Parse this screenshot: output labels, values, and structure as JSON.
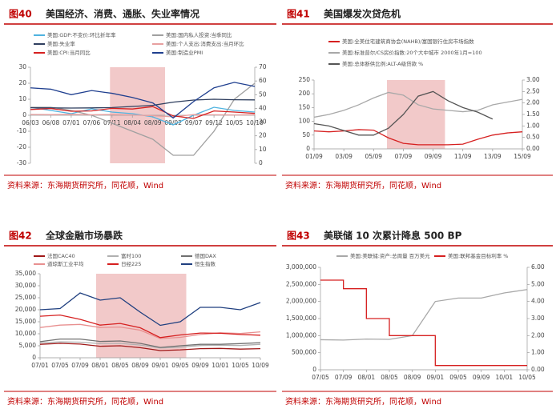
{
  "chart_data": [
    {
      "type": "line",
      "figure": "图40",
      "title": "美国经济、消费、通胀、失业率情况",
      "source": "资料来源：东海期货研究所，同花顺，Wind",
      "categories": [
        "06/03",
        "06/08",
        "07/01",
        "07/06",
        "07/11",
        "08/04",
        "08/09",
        "09/02",
        "09/07",
        "09/12",
        "10/05",
        "10/10"
      ],
      "highlight": [
        3.9,
        6.6
      ],
      "highlight_color": "#f2c9c9",
      "ylim": [
        -30,
        30
      ],
      "yticks": [
        -30,
        -20,
        -10,
        0,
        10,
        20,
        30
      ],
      "y2lim": [
        0,
        70
      ],
      "y2ticks": [
        0,
        10,
        20,
        30,
        40,
        50,
        60,
        70
      ],
      "series": [
        {
          "name": "美国:GDP:不变价:环比折年率",
          "color": "#4fb3e0",
          "values": [
            5,
            3,
            1,
            4,
            2,
            1,
            -1,
            -6,
            0,
            5,
            3,
            2
          ]
        },
        {
          "name": "美国:国内私人投资:当季同比",
          "color": "#a0a0a0",
          "values": [
            5,
            5,
            3,
            0,
            -5,
            -10,
            -15,
            -25,
            -25,
            -10,
            10,
            20
          ]
        },
        {
          "name": "美国:失业率",
          "color": "#2f3f5f",
          "values": [
            4.7,
            4.6,
            4.5,
            4.6,
            4.8,
            5.5,
            6.2,
            8.2,
            9.5,
            10,
            9.7,
            9.6
          ]
        },
        {
          "name": "美国:个人支出:消费支出:当月环比",
          "color": "#e8a0a0",
          "values": [
            0.5,
            0.4,
            0.6,
            0.3,
            0.5,
            0.2,
            -0.3,
            -1,
            0.4,
            0.3,
            0.2,
            0.4
          ]
        },
        {
          "name": "美国:CPI:当月同比",
          "color": "#d62020",
          "values": [
            3.6,
            4.2,
            2.5,
            2.7,
            4.3,
            3.9,
            5.4,
            -0.4,
            -2,
            2.7,
            2,
            1.2
          ]
        },
        {
          "name": "美国:制造业PMI",
          "color": "#1f3f8f",
          "axis": "y2",
          "values": [
            55,
            54,
            50,
            53,
            51,
            48,
            44,
            33,
            45,
            55,
            59,
            56
          ]
        }
      ]
    },
    {
      "type": "line",
      "figure": "图41",
      "title": "美国爆发次贷危机",
      "source": "资料来源：东海期货研究所，同花顺，Wind",
      "categories": [
        "01/09",
        null,
        "03/09",
        null,
        "05/09",
        null,
        "07/09",
        null,
        "09/09",
        null,
        "11/09",
        null,
        "13/09",
        null,
        "15/09"
      ],
      "highlight": [
        4.9,
        8.8
      ],
      "highlight_color": "#f2c9c9",
      "ylim": [
        0,
        250
      ],
      "yticks": [
        0,
        50,
        100,
        150,
        200,
        250
      ],
      "y2lim": [
        0,
        3
      ],
      "y2ticks": [
        {
          "value": 0,
          "label": "0.00"
        },
        {
          "value": 0.5,
          "label": "0.50"
        },
        {
          "value": 1,
          "label": "1.00"
        },
        {
          "value": 1.5,
          "label": "1.50"
        },
        {
          "value": 2,
          "label": "2.00"
        },
        {
          "value": 2.5,
          "label": "2.50"
        },
        {
          "value": 3,
          "label": "3.00"
        }
      ],
      "series": [
        {
          "name": "美国:全美住宅建筑商协会(NAHB)/富国银行住房市场指数",
          "color": "#d62020",
          "values": [
            65,
            62,
            65,
            70,
            68,
            40,
            20,
            15,
            15,
            15,
            17,
            35,
            50,
            58,
            62
          ]
        },
        {
          "name": "美国:标准普尔/CS房价指数:20个大中城市 2000年1月=100",
          "color": "#a8a8a8",
          "values": [
            115,
            125,
            140,
            160,
            185,
            205,
            195,
            160,
            145,
            140,
            135,
            140,
            160,
            170,
            180
          ]
        },
        {
          "name": "美国:总体断供比例:ALT-A级贷款 %",
          "color": "#555555",
          "axis": "y2",
          "values": [
            1.1,
            1.0,
            0.8,
            0.6,
            0.6,
            0.9,
            1.5,
            2.3,
            2.5,
            2.1,
            1.8,
            1.6,
            1.3,
            null,
            null
          ]
        }
      ]
    },
    {
      "type": "line",
      "figure": "图42",
      "title": "全球金融市场暴跌",
      "source": "资料来源：东海期货研究所，同花顺，Wind",
      "categories": [
        "07/01",
        "07/05",
        "07/09",
        "08/01",
        "08/05",
        "08/09",
        "09/01",
        "09/05",
        "09/09",
        "10/01",
        "10/05",
        "10/09"
      ],
      "highlight": [
        2.8,
        7.3
      ],
      "highlight_color": "#f2c9c9",
      "ylim": [
        0,
        35000
      ],
      "yticks": [
        0,
        {
          "value": 5000,
          "label": "5,000"
        },
        {
          "value": 10000,
          "label": "10,000"
        },
        {
          "value": 15000,
          "label": "15,000"
        },
        {
          "value": 20000,
          "label": "20,000"
        },
        {
          "value": 25000,
          "label": "25,000"
        },
        {
          "value": 30000,
          "label": "30,000"
        },
        {
          "value": 35000,
          "label": "35,000"
        }
      ],
      "series": [
        {
          "name": "法国CAC40",
          "color": "#a01818",
          "values": [
            5600,
            6000,
            5700,
            4800,
            5000,
            4200,
            3000,
            3300,
            3800,
            3900,
            3600,
            3800
          ]
        },
        {
          "name": "富时100",
          "color": "#b0b0b0",
          "values": [
            6200,
            6600,
            6500,
            5900,
            6000,
            5300,
            4100,
            4400,
            5100,
            5200,
            5100,
            5600
          ]
        },
        {
          "name": "德国DAX",
          "color": "#707070",
          "values": [
            6700,
            7800,
            7800,
            6800,
            7000,
            6000,
            4300,
            5000,
            5600,
            5600,
            5900,
            6300
          ]
        },
        {
          "name": "道琼斯工业平均",
          "color": "#e89090",
          "values": [
            12600,
            13600,
            13900,
            12600,
            12800,
            11500,
            8000,
            8500,
            9700,
            10400,
            10100,
            10800
          ]
        },
        {
          "name": "日经225",
          "color": "#d62020",
          "values": [
            17300,
            17800,
            16000,
            13600,
            14300,
            12500,
            8400,
            9500,
            10300,
            10200,
            9700,
            9400
          ]
        },
        {
          "name": "恒生指数",
          "color": "#1f3f7f",
          "values": [
            20000,
            20500,
            27000,
            24000,
            25000,
            19000,
            13500,
            15000,
            21000,
            21000,
            20000,
            23000
          ]
        }
      ]
    },
    {
      "type": "line",
      "figure": "图43",
      "title": "美联储 10 次累计降息 500 BP",
      "source": "资料来源：东海期货研究所，同花顺，Wind",
      "categories": [
        "07/05",
        "07/09",
        "08/01",
        "08/05",
        "08/09",
        "09/01",
        "09/05",
        "09/09",
        "10/01",
        "10/05"
      ],
      "ylim": [
        0,
        3000000
      ],
      "yticks": [
        0,
        {
          "value": 500000,
          "label": "500,000"
        },
        {
          "value": 1000000,
          "label": "1,000,000"
        },
        {
          "value": 1500000,
          "label": "1,500,000"
        },
        {
          "value": 2000000,
          "label": "2,000,000"
        },
        {
          "value": 2500000,
          "label": "2,500,000"
        },
        {
          "value": 3000000,
          "label": "3,000,000"
        }
      ],
      "y2lim": [
        0,
        6
      ],
      "y2ticks": [
        {
          "value": 0,
          "label": "0.00"
        },
        {
          "value": 1,
          "label": "1.00"
        },
        {
          "value": 2,
          "label": "2.00"
        },
        {
          "value": 3,
          "label": "3.00"
        },
        {
          "value": 4,
          "label": "4.00"
        },
        {
          "value": 5,
          "label": "5.00"
        },
        {
          "value": 6,
          "label": "6.00"
        }
      ],
      "series": [
        {
          "name": "美国:美联储:资产:总周量 百万美元",
          "color": "#a8a8a8",
          "values": [
            880000,
            870000,
            900000,
            890000,
            1000000,
            2000000,
            2100000,
            2100000,
            2250000,
            2350000
          ]
        },
        {
          "name": "美国:联邦基金目标利率 %",
          "color": "#d62020",
          "axis": "y2",
          "step": true,
          "values": [
            5.25,
            4.75,
            3.0,
            2.0,
            2.0,
            0.25,
            0.25,
            0.25,
            0.25,
            0.25
          ]
        }
      ]
    }
  ]
}
